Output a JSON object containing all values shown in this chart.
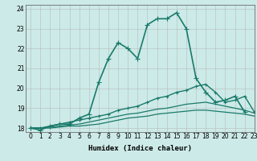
{
  "xlabel": "Humidex (Indice chaleur)",
  "ylabel": "",
  "background_color": "#cceae8",
  "grid_color": "#b0b0b0",
  "line_color": "#1a7a6a",
  "xlim": [
    -0.5,
    23
  ],
  "ylim": [
    17.8,
    24.2
  ],
  "yticks": [
    18,
    19,
    20,
    21,
    22,
    23,
    24
  ],
  "xticks": [
    0,
    1,
    2,
    3,
    4,
    5,
    6,
    7,
    8,
    9,
    10,
    11,
    12,
    13,
    14,
    15,
    16,
    17,
    18,
    19,
    20,
    21,
    22,
    23
  ],
  "series": [
    {
      "x": [
        0,
        1,
        2,
        3,
        4,
        5,
        6,
        7,
        8,
        9,
        10,
        11,
        12,
        13,
        14,
        15,
        16,
        17,
        18,
        19,
        20,
        21,
        22
      ],
      "y": [
        18.0,
        17.9,
        18.1,
        18.2,
        18.2,
        18.5,
        18.7,
        20.3,
        21.5,
        22.3,
        22.0,
        21.5,
        23.2,
        23.5,
        23.5,
        23.8,
        23.0,
        20.5,
        19.8,
        19.3,
        19.4,
        19.6,
        18.8
      ],
      "marker": "+",
      "lw": 1.2,
      "ms": 4
    },
    {
      "x": [
        0,
        1,
        2,
        3,
        4,
        5,
        6,
        7,
        8,
        9,
        10,
        11,
        12,
        13,
        14,
        15,
        16,
        17,
        18,
        19,
        20,
        21,
        22,
        23
      ],
      "y": [
        18.0,
        18.0,
        18.1,
        18.2,
        18.3,
        18.4,
        18.5,
        18.6,
        18.7,
        18.9,
        19.0,
        19.1,
        19.3,
        19.5,
        19.6,
        19.8,
        19.9,
        20.1,
        20.2,
        19.8,
        19.3,
        19.4,
        19.6,
        18.8
      ],
      "marker": "+",
      "lw": 1.0,
      "ms": 3
    },
    {
      "x": [
        0,
        1,
        2,
        3,
        4,
        5,
        6,
        7,
        8,
        9,
        10,
        11,
        12,
        13,
        14,
        15,
        16,
        17,
        18,
        19,
        20,
        21,
        22,
        23
      ],
      "y": [
        18.0,
        18.0,
        18.05,
        18.1,
        18.15,
        18.2,
        18.3,
        18.4,
        18.5,
        18.6,
        18.7,
        18.75,
        18.85,
        18.95,
        19.0,
        19.1,
        19.2,
        19.25,
        19.3,
        19.2,
        19.1,
        19.0,
        18.9,
        18.75
      ],
      "marker": null,
      "lw": 0.9,
      "ms": 0
    },
    {
      "x": [
        0,
        1,
        2,
        3,
        4,
        5,
        6,
        7,
        8,
        9,
        10,
        11,
        12,
        13,
        14,
        15,
        16,
        17,
        18,
        19,
        20,
        21,
        22,
        23
      ],
      "y": [
        18.0,
        18.0,
        18.0,
        18.05,
        18.1,
        18.1,
        18.15,
        18.2,
        18.3,
        18.4,
        18.5,
        18.55,
        18.6,
        18.7,
        18.75,
        18.8,
        18.85,
        18.9,
        18.9,
        18.85,
        18.8,
        18.75,
        18.7,
        18.6
      ],
      "marker": null,
      "lw": 0.9,
      "ms": 0
    }
  ]
}
